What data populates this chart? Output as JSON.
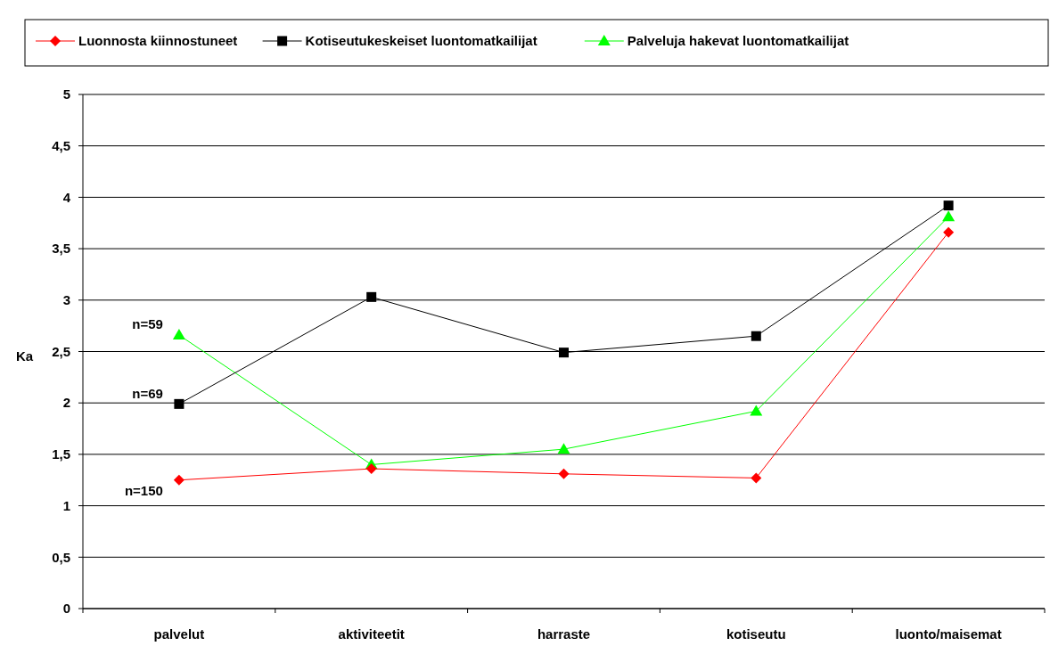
{
  "chart_data": {
    "type": "line",
    "ylabel": "Ka",
    "categories": [
      "palvelut",
      "aktiviteetit",
      "harraste",
      "kotiseutu",
      "luonto/maisemat"
    ],
    "series": [
      {
        "name": "Luonnosta kiinnostuneet",
        "color": "#ff0000",
        "marker": "diamond",
        "values": [
          1.25,
          1.36,
          1.31,
          1.27,
          3.66
        ]
      },
      {
        "name": "Kotiseutukeskeiset luontomatkailijat",
        "color": "#000000",
        "marker": "square",
        "values": [
          1.99,
          3.03,
          2.49,
          2.65,
          3.92
        ]
      },
      {
        "name": "Palveluja hakevat luontomatkailijat",
        "color": "#00ff00",
        "marker": "triangle",
        "values": [
          2.66,
          1.4,
          1.55,
          1.92,
          3.81
        ]
      }
    ],
    "ylim": [
      0,
      5
    ],
    "yticks": [
      0,
      {
        "value": 0.5,
        "label": "0,5"
      },
      1,
      {
        "value": 1.5,
        "label": "1,5"
      },
      2,
      {
        "value": 2.5,
        "label": "2,5"
      },
      3,
      {
        "value": 3.5,
        "label": "3,5"
      },
      4,
      {
        "value": 4.5,
        "label": "4,5"
      },
      5
    ],
    "grid": "y",
    "legend": "top",
    "annotations": [
      {
        "text": "n=59",
        "x": "palvelut",
        "y": 2.66
      },
      {
        "text": "n=69",
        "x": "palvelut",
        "y": 1.99
      },
      {
        "text": "n=150",
        "x": "palvelut",
        "y": 1.25
      }
    ]
  }
}
